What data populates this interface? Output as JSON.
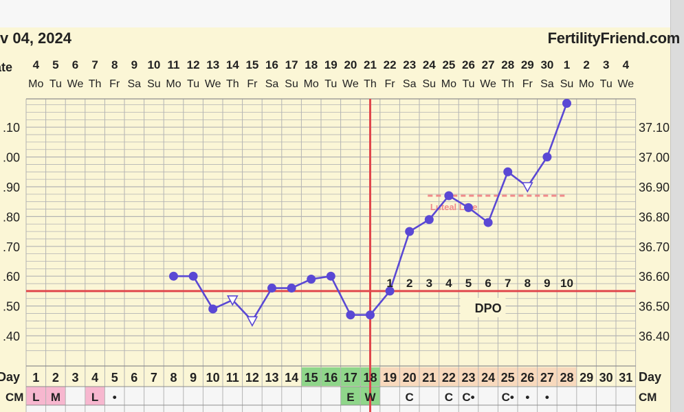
{
  "header": {
    "date_label": "v 04, 2024",
    "site": "FertilityFriend.com"
  },
  "colors": {
    "temp_line": "#5a48d4",
    "coverline": "#e0474c",
    "ovulation_line": "#e0474c",
    "luteal_line": "#f08a8a",
    "grid": "#b3b3b3",
    "background": "#fbf6d6"
  },
  "labels": {
    "date_row": "ate",
    "day_row": "Day",
    "cm_row": "CM",
    "luteal": "Luteal Line",
    "dpo": "DPO"
  },
  "dates": [
    "4",
    "5",
    "6",
    "7",
    "8",
    "9",
    "10",
    "11",
    "12",
    "13",
    "14",
    "15",
    "16",
    "17",
    "18",
    "19",
    "20",
    "21",
    "22",
    "23",
    "24",
    "25",
    "26",
    "27",
    "28",
    "29",
    "30",
    "1",
    "2",
    "3",
    "4"
  ],
  "weekdays": [
    "Mo",
    "Tu",
    "We",
    "Th",
    "Fr",
    "Sa",
    "Su",
    "Mo",
    "Tu",
    "We",
    "Th",
    "Fr",
    "Sa",
    "Su",
    "Mo",
    "Tu",
    "We",
    "Th",
    "Fr",
    "Sa",
    "Su",
    "Mo",
    "Tu",
    "We",
    "Th",
    "Fr",
    "Sa",
    "Su",
    "Mo",
    "Tu",
    "We"
  ],
  "cycle_days": [
    "1",
    "2",
    "3",
    "4",
    "5",
    "6",
    "7",
    "8",
    "9",
    "10",
    "11",
    "12",
    "13",
    "14",
    "15",
    "16",
    "17",
    "18",
    "19",
    "20",
    "21",
    "22",
    "23",
    "24",
    "25",
    "26",
    "27",
    "28",
    "29",
    "30",
    "31"
  ],
  "cm_values": [
    "L",
    "M",
    "",
    "L",
    "•",
    "",
    "",
    "",
    "",
    "",
    "",
    "",
    "",
    "",
    "",
    "",
    "E",
    "W",
    "",
    "C",
    "",
    "C",
    "C•",
    "",
    "C•",
    "•",
    "•",
    "",
    "",
    "",
    ""
  ],
  "dpo_numbers": [
    "1",
    "2",
    "3",
    "4",
    "5",
    "6",
    "7",
    "8",
    "9",
    "10"
  ],
  "chart_data": {
    "type": "line",
    "title": "",
    "xlabel": "Day",
    "ylabel": "",
    "x_categories": [
      "1",
      "2",
      "3",
      "4",
      "5",
      "6",
      "7",
      "8",
      "9",
      "10",
      "11",
      "12",
      "13",
      "14",
      "15",
      "16",
      "17",
      "18",
      "19",
      "20",
      "21",
      "22",
      "23",
      "24",
      "25",
      "26",
      "27",
      "28",
      "29",
      "30",
      "31"
    ],
    "ylim": [
      36.32,
      37.21
    ],
    "y_ticks_left": [
      ".40",
      ".50",
      ".60",
      ".70",
      ".80",
      ".90",
      ".00",
      ".10"
    ],
    "y_ticks_right": [
      "36.40",
      "36.50",
      "36.60",
      "36.70",
      "36.80",
      "36.90",
      "37.00",
      "37.10"
    ],
    "y_tick_values": [
      36.4,
      36.5,
      36.6,
      36.7,
      36.8,
      36.9,
      37.0,
      37.1
    ],
    "series": [
      {
        "points": [
          {
            "day": 8,
            "temp": 36.6,
            "marker": "dot"
          },
          {
            "day": 9,
            "temp": 36.6,
            "marker": "dot"
          },
          {
            "day": 10,
            "temp": 36.49,
            "marker": "dot"
          },
          {
            "day": 11,
            "temp": 36.52,
            "marker": "open-triangle"
          },
          {
            "day": 12,
            "temp": 36.45,
            "marker": "open-triangle"
          },
          {
            "day": 13,
            "temp": 36.56,
            "marker": "dot"
          },
          {
            "day": 14,
            "temp": 36.56,
            "marker": "dot"
          },
          {
            "day": 15,
            "temp": 36.59,
            "marker": "dot"
          },
          {
            "day": 16,
            "temp": 36.6,
            "marker": "dot"
          },
          {
            "day": 17,
            "temp": 36.47,
            "marker": "dot"
          },
          {
            "day": 18,
            "temp": 36.47,
            "marker": "dot"
          },
          {
            "day": 19,
            "temp": 36.55,
            "marker": "dot"
          },
          {
            "day": 20,
            "temp": 36.75,
            "marker": "dot"
          },
          {
            "day": 21,
            "temp": 36.79,
            "marker": "dot"
          },
          {
            "day": 22,
            "temp": 36.87,
            "marker": "dot"
          },
          {
            "day": 23,
            "temp": 36.83,
            "marker": "dot"
          },
          {
            "day": 24,
            "temp": 36.78,
            "marker": "dot"
          },
          {
            "day": 25,
            "temp": 36.95,
            "marker": "dot"
          },
          {
            "day": 26,
            "temp": 36.9,
            "marker": "open-triangle"
          },
          {
            "day": 27,
            "temp": 37.0,
            "marker": "dot"
          },
          {
            "day": 28,
            "temp": 37.18,
            "marker": "dot"
          }
        ]
      }
    ],
    "coverline": 36.55,
    "ovulation_day": 18,
    "luteal_line": {
      "temp": 36.87,
      "from_day": 21,
      "to_day": 28
    },
    "shading": {
      "fertile_days": [
        15,
        16,
        17,
        18
      ],
      "luteal_days": [
        19,
        20,
        21,
        22,
        23,
        24,
        25,
        26,
        27,
        28
      ],
      "cm_pink_days": [
        1,
        2,
        4
      ],
      "cm_green_days": [
        17,
        18
      ]
    },
    "grid": true
  }
}
